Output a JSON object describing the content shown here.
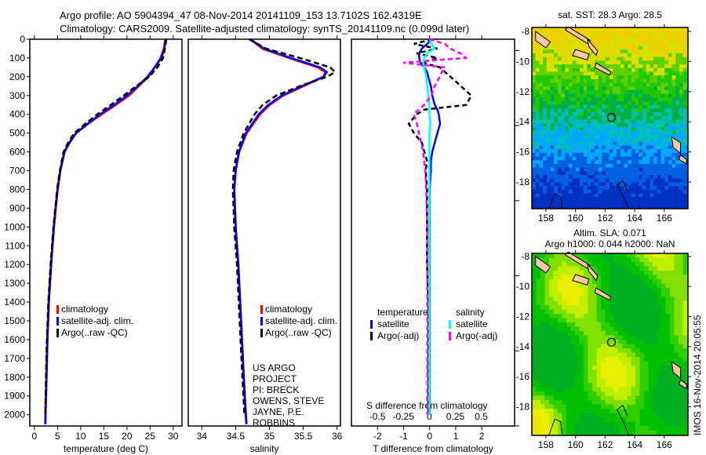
{
  "header": {
    "title_line1": "Argo profile: AO 5904394_47 08-Nov-2014 20141109_153 13.7102S 162.4319E",
    "title_line2": "Climatology: CARS2009. Satellite-adjusted climatology: synTS_20141109.nc (0.099d later)"
  },
  "credits": {
    "line1": "US ARGO PROJECT",
    "line2": "PI: BRECK OWENS, STEVE JAYNE, P.E. ROBBINS",
    "imos_stamp": "IMOS 16-Nov-2014 20:05:55"
  },
  "colors": {
    "climatology": "#ff0000",
    "satellite": "#0000ff",
    "argo": "#000000",
    "sal_satellite": "#00ffff",
    "sal_argo": "#ff00ff",
    "land": "#f8c8a0"
  },
  "chart_data": [
    {
      "type": "line",
      "id": "temperature",
      "xlabel": "temperature (deg C)",
      "ylabel": "",
      "xlim": [
        -1,
        31.9
      ],
      "ylim": [
        0,
        2060
      ],
      "y_reversed": true,
      "xticks": [
        0,
        5,
        10,
        15,
        20,
        25,
        30
      ],
      "yticks": [
        0,
        100,
        200,
        300,
        400,
        500,
        600,
        700,
        800,
        900,
        1000,
        1100,
        1200,
        1300,
        1400,
        1500,
        1600,
        1700,
        1800,
        1900,
        2000
      ],
      "legend": [
        "climatology",
        "satellite-adj. clim.",
        "Argo(..raw -QC)"
      ],
      "depth": [
        0,
        50,
        100,
        150,
        200,
        250,
        300,
        350,
        400,
        450,
        500,
        550,
        600,
        700,
        800,
        900,
        1000,
        1200,
        1400,
        1600,
        1800,
        2000,
        2050
      ],
      "series": [
        {
          "name": "climatology",
          "values": [
            28.3,
            28.0,
            27.3,
            26.0,
            24.6,
            22.5,
            20.4,
            17.5,
            14.5,
            11.6,
            9.0,
            7.6,
            6.5,
            5.6,
            5.0,
            4.6,
            4.2,
            3.6,
            3.1,
            2.8,
            2.6,
            2.4,
            2.35
          ]
        },
        {
          "name": "satellite-adj. clim.",
          "values": [
            28.4,
            28.1,
            27.4,
            26.0,
            24.4,
            22.3,
            20.0,
            17.2,
            14.2,
            11.5,
            9.0,
            7.6,
            6.5,
            5.6,
            5.0,
            4.6,
            4.2,
            3.6,
            3.1,
            2.8,
            2.6,
            2.4,
            2.35
          ]
        },
        {
          "name": "Argo(..raw -QC)",
          "values": [
            28.5,
            28.2,
            27.8,
            26.6,
            24.8,
            22.0,
            19.3,
            16.5,
            13.6,
            11.0,
            8.6,
            7.3,
            6.3,
            5.5,
            4.9,
            4.5,
            4.1,
            3.5,
            3.0,
            2.7,
            2.5,
            2.35,
            null
          ]
        }
      ]
    },
    {
      "type": "line",
      "id": "salinity",
      "xlabel": "salinity",
      "xlim": [
        33.8,
        36.05
      ],
      "ylim": [
        0,
        2060
      ],
      "y_reversed": true,
      "xticks": [
        34,
        34.5,
        35,
        35.5,
        36
      ],
      "legend": [
        "climatology",
        "satellite-adj. clim.",
        "Argo(..raw -QC)"
      ],
      "depth": [
        0,
        50,
        100,
        150,
        175,
        200,
        250,
        300,
        350,
        400,
        500,
        600,
        700,
        800,
        1000,
        1200,
        1500,
        1800,
        2000,
        2050
      ],
      "series": [
        {
          "name": "climatology",
          "values": [
            34.72,
            34.9,
            35.3,
            35.72,
            35.83,
            35.8,
            35.5,
            35.2,
            35.0,
            34.86,
            34.66,
            34.55,
            34.5,
            34.48,
            34.5,
            34.54,
            34.58,
            34.62,
            34.65,
            34.66
          ]
        },
        {
          "name": "satellite-adj. clim.",
          "values": [
            34.72,
            34.92,
            35.32,
            35.75,
            35.85,
            35.8,
            35.48,
            35.18,
            34.98,
            34.84,
            34.65,
            34.55,
            34.5,
            34.48,
            34.5,
            34.54,
            34.58,
            34.62,
            34.65,
            34.66
          ]
        },
        {
          "name": "Argo(..raw -QC)",
          "values": [
            34.7,
            34.95,
            35.45,
            35.9,
            35.97,
            35.85,
            35.45,
            35.1,
            34.9,
            34.78,
            34.62,
            34.52,
            34.47,
            34.46,
            34.48,
            34.52,
            34.56,
            34.6,
            34.63,
            null
          ]
        }
      ]
    },
    {
      "type": "line",
      "id": "differences",
      "xlabel": "T difference from climatology",
      "x2label": "S difference from climatology",
      "xlim": [
        -3.0,
        3.26
      ],
      "x2lim": [
        -0.75,
        0.82
      ],
      "ylim": [
        0,
        2060
      ],
      "y_reversed": true,
      "xticks": [
        -2,
        -1,
        0,
        1,
        2
      ],
      "x2ticks": [
        -0.5,
        -0.25,
        0,
        0.25,
        0.5
      ],
      "x2ticklabels": [
        "-0.5",
        "-0.25",
        "0",
        "0.25",
        "0.5"
      ],
      "legend_groups": [
        {
          "title": "temperature",
          "items": [
            "satellite",
            "Argo(-adj)"
          ]
        },
        {
          "title": "salinity",
          "items": [
            "satellite",
            "Argo(-adj)"
          ]
        }
      ],
      "depth": [
        0,
        25,
        50,
        75,
        100,
        125,
        150,
        175,
        200,
        250,
        300,
        350,
        375,
        400,
        450,
        500,
        550,
        600,
        650,
        700,
        800,
        1000,
        1200,
        1400,
        1600,
        1800,
        2000
      ],
      "series": [
        {
          "name": "T satellite",
          "axis": "T",
          "values": [
            0.1,
            -0.1,
            -0.3,
            -0.4,
            -0.4,
            -0.35,
            -0.2,
            -0.1,
            -0.05,
            0.05,
            0.1,
            0.2,
            0.3,
            0.35,
            0.4,
            0.3,
            0.2,
            0.1,
            0.05,
            0.05,
            0.0,
            0.0,
            0.0,
            0.0,
            0.0,
            0.0,
            0.0
          ]
        },
        {
          "name": "T Argo(-adj)",
          "axis": "T",
          "values": [
            0.1,
            -0.6,
            0.3,
            -0.5,
            0.3,
            -0.3,
            0.4,
            0.6,
            0.8,
            1.2,
            1.6,
            1.4,
            -0.2,
            -0.5,
            -0.8,
            -0.6,
            -0.3,
            -0.2,
            -0.1,
            -0.15,
            -0.1,
            -0.1,
            -0.1,
            -0.05,
            -0.05,
            -0.05,
            -0.05
          ]
        },
        {
          "name": "S satellite",
          "axis": "S",
          "values": [
            0.0,
            0.02,
            0.05,
            -0.02,
            -0.05,
            -0.06,
            -0.05,
            -0.04,
            -0.03,
            -0.02,
            -0.01,
            0.0,
            0.0,
            0.0,
            0.01,
            0.0,
            0.0,
            0.0,
            0.0,
            0.0,
            0.0,
            0.0,
            0.0,
            0.0,
            0.0,
            0.0,
            0.0
          ]
        },
        {
          "name": "S Argo(-adj)",
          "axis": "S",
          "values": [
            0.0,
            0.15,
            0.2,
            0.3,
            0.35,
            -0.25,
            0.15,
            0.12,
            0.1,
            0.05,
            0.02,
            -0.05,
            -0.1,
            -0.15,
            -0.12,
            -0.1,
            -0.08,
            -0.06,
            -0.05,
            -0.04,
            -0.03,
            -0.02,
            -0.02,
            -0.02,
            -0.02,
            -0.02,
            -0.02
          ]
        }
      ]
    },
    {
      "type": "heatmap",
      "id": "sst_map",
      "title": "sat. SST: 28.3 Argo: 28.5",
      "xlim": [
        157.05,
        167.6
      ],
      "ylim": [
        -19.77,
        -7.74
      ],
      "xticks": [
        158,
        160,
        162,
        164,
        166
      ],
      "yticks": [
        -8,
        -10,
        -12,
        -14,
        -16,
        -18
      ],
      "argo_position": [
        162.43,
        -13.71
      ]
    },
    {
      "type": "heatmap",
      "id": "sla_map",
      "title_line1": "Altim. SLA: 0.071",
      "title_line2": "Argo h1000: 0.044 h2000: NaN",
      "xlim": [
        157.05,
        167.6
      ],
      "ylim": [
        -19.9,
        -7.8
      ],
      "xticks": [
        158,
        160,
        162,
        164,
        166
      ],
      "yticks": [
        -8,
        -10,
        -12,
        -14,
        -16,
        -18
      ],
      "argo_position": [
        162.43,
        -13.71
      ]
    }
  ]
}
